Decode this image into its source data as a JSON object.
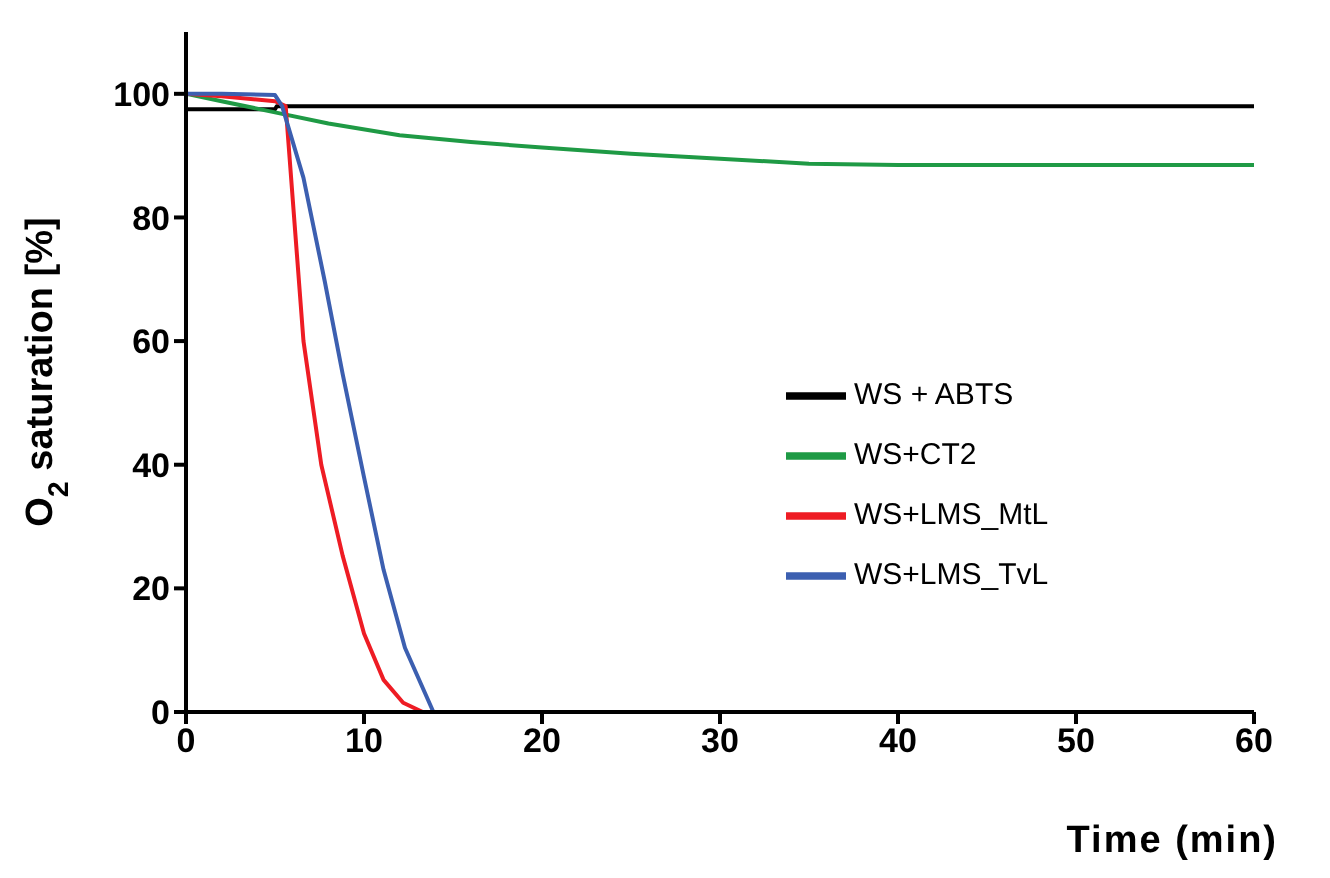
{
  "chart_data": {
    "type": "line",
    "xlabel": "Time (min)",
    "ylabel": "O$_{2}$ saturation [%]",
    "xlim": [
      0,
      60
    ],
    "xticks": [
      0,
      10,
      20,
      30,
      40,
      50,
      60
    ],
    "ylim": [
      0,
      110
    ],
    "yticks": [
      0,
      20,
      40,
      60,
      80,
      100
    ],
    "grid": false,
    "legend": "right",
    "marker": "none",
    "line_style": "solid",
    "series": [
      {
        "name": "WS + ABTS",
        "color": "#000000",
        "x": [
          0,
          5,
          5.1,
          60
        ],
        "values": [
          97.5,
          97.5,
          98,
          98
        ]
      },
      {
        "name": "WS+CT2",
        "color": "#1f9a45",
        "x": [
          0,
          2,
          5,
          8,
          12,
          16,
          20,
          25,
          30,
          35,
          40,
          50,
          60
        ],
        "values": [
          100,
          98.8,
          97,
          95.2,
          93.3,
          92.2,
          91.3,
          90.3,
          89.5,
          88.7,
          88.5,
          88.5,
          88.5
        ]
      },
      {
        "name": "WS+LMS_MtL",
        "color": "#ee1c24",
        "x": [
          0,
          2,
          5,
          5.6,
          6.6,
          7.6,
          8.8,
          10,
          11.1,
          12.2,
          13.3
        ],
        "values": [
          100,
          99.6,
          98.8,
          98,
          60,
          40,
          25.3,
          12.7,
          5.2,
          1.5,
          0
        ]
      },
      {
        "name": "WS+LMS_TvL",
        "color": "#3c5fb0",
        "x": [
          0,
          2,
          5,
          5.4,
          6.6,
          7.8,
          8.8,
          10,
          11.1,
          12.3,
          13.9
        ],
        "values": [
          100,
          100,
          99.8,
          98,
          86.4,
          69.6,
          54.7,
          38,
          23,
          10.4,
          0
        ]
      }
    ]
  }
}
